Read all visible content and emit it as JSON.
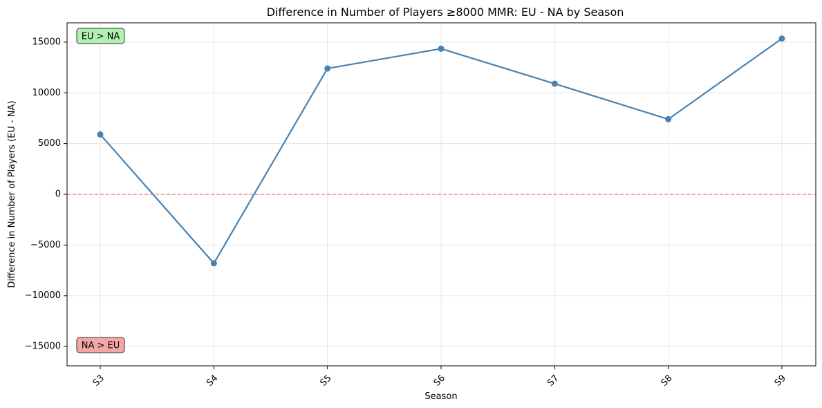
{
  "chart_data": {
    "type": "line",
    "title": "Difference in Number of Players ≥8000 MMR: EU - NA by Season",
    "xlabel": "Season",
    "ylabel": "Difference in Number of Players (EU - NA)",
    "categories": [
      "S3",
      "S4",
      "S5",
      "S6",
      "S7",
      "S8",
      "S9"
    ],
    "series": [
      {
        "values": [
          5900,
          -6800,
          12400,
          14350,
          10900,
          7400,
          15350
        ]
      }
    ],
    "ylim": [
      -16900,
      16900
    ],
    "yticks": [
      -15000,
      -10000,
      -5000,
      0,
      5000,
      10000,
      15000
    ],
    "grid": true,
    "reference_line": {
      "y": 0,
      "color": "#e74c3c",
      "style": "dashed"
    },
    "annotations": [
      {
        "text": "EU > NA",
        "position": "top-left",
        "color": "#b2f0b2"
      },
      {
        "text": "NA > EU",
        "position": "bottom-left",
        "color": "#f4a6a6"
      }
    ],
    "colors": {
      "line": "#4682b4",
      "grid": "#e6e6e6"
    }
  }
}
